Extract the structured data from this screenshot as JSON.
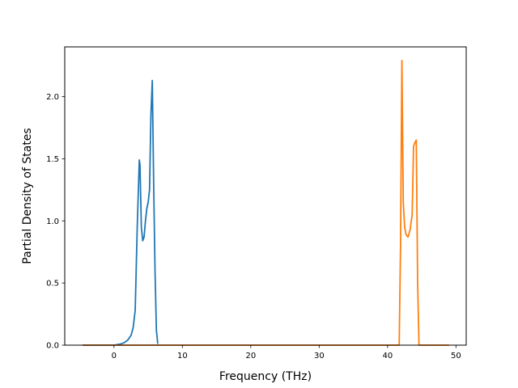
{
  "chart_data": {
    "type": "line",
    "title": "",
    "xlabel": "Frequency (THz)",
    "ylabel": "Partial Density of States",
    "xlim": [
      -7.2,
      51.5
    ],
    "ylim": [
      0.0,
      2.4
    ],
    "xticks": [
      0,
      10,
      20,
      30,
      40,
      50
    ],
    "yticks": [
      0.0,
      0.5,
      1.0,
      1.5,
      2.0
    ],
    "xtick_labels": [
      "0",
      "10",
      "20",
      "30",
      "40",
      "50"
    ],
    "ytick_labels": [
      "0.0",
      "0.5",
      "1.0",
      "1.5",
      "2.0"
    ],
    "grid": false,
    "legend": "none",
    "series": [
      {
        "color": "#1f77b4",
        "x": [
          -4.6,
          0.0,
          1.0,
          1.5,
          2.0,
          2.5,
          2.8,
          3.1,
          3.4,
          3.7,
          3.8,
          4.0,
          4.2,
          4.4,
          4.6,
          4.8,
          5.0,
          5.2,
          5.4,
          5.6,
          5.8,
          6.0,
          6.2,
          6.4
        ],
        "y": [
          0.0,
          0.0,
          0.01,
          0.02,
          0.04,
          0.08,
          0.14,
          0.28,
          0.95,
          1.49,
          1.45,
          0.95,
          0.84,
          0.87,
          1.0,
          1.1,
          1.15,
          1.25,
          1.85,
          2.13,
          1.3,
          0.6,
          0.12,
          0.01
        ]
      },
      {
        "color": "#ff7f0e",
        "x": [
          -4.6,
          41.7,
          41.9,
          42.1,
          42.3,
          42.5,
          42.7,
          43.0,
          43.3,
          43.6,
          43.8,
          44.0,
          44.2,
          44.4,
          44.6,
          49.0
        ],
        "y": [
          0.0,
          0.0,
          0.8,
          2.29,
          1.15,
          0.95,
          0.89,
          0.87,
          0.93,
          1.05,
          1.6,
          1.63,
          1.65,
          0.5,
          0.0,
          0.0
        ]
      }
    ]
  }
}
